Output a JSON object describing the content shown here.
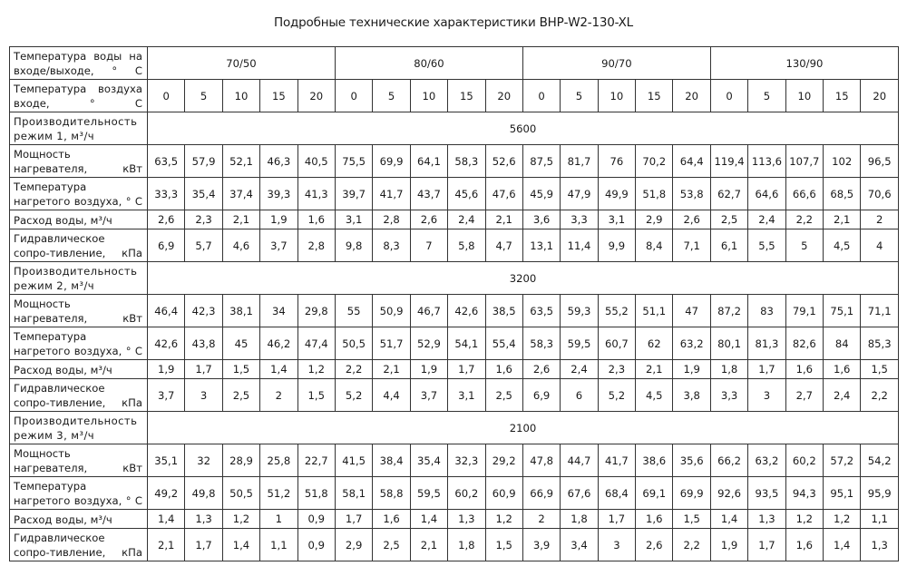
{
  "title": "Подробные технические характеристики ВНР-W2-130-XL",
  "header": {
    "water_temp_label": "Температура воды на входе/выходе, ° С",
    "water_temps": [
      "70/50",
      "80/60",
      "90/70",
      "130/90"
    ],
    "air_temp_label": "Температура воздуха входе, ° С",
    "air_temps": [
      "0",
      "5",
      "10",
      "15",
      "20",
      "0",
      "5",
      "10",
      "15",
      "20",
      "0",
      "5",
      "10",
      "15",
      "20",
      "0",
      "5",
      "10",
      "15",
      "20"
    ]
  },
  "row_labels": {
    "power": "Мощность нагревателя, кВт",
    "heated_air": "Температура нагретого воздуха, ° С",
    "water_flow": "Расход воды, м³/ч",
    "resistance": "Гидравлическое сопро-тивление, кПа"
  },
  "modes": [
    {
      "label": "Производительность режим 1, м³/ч",
      "capacity": "5600",
      "power": [
        "63,5",
        "57,9",
        "52,1",
        "46,3",
        "40,5",
        "75,5",
        "69,9",
        "64,1",
        "58,3",
        "52,6",
        "87,5",
        "81,7",
        "76",
        "70,2",
        "64,4",
        "119,4",
        "113,6",
        "107,7",
        "102",
        "96,5"
      ],
      "heated_air": [
        "33,3",
        "35,4",
        "37,4",
        "39,3",
        "41,3",
        "39,7",
        "41,7",
        "43,7",
        "45,6",
        "47,6",
        "45,9",
        "47,9",
        "49,9",
        "51,8",
        "53,8",
        "62,7",
        "64,6",
        "66,6",
        "68,5",
        "70,6"
      ],
      "water_flow": [
        "2,6",
        "2,3",
        "2,1",
        "1,9",
        "1,6",
        "3,1",
        "2,8",
        "2,6",
        "2,4",
        "2,1",
        "3,6",
        "3,3",
        "3,1",
        "2,9",
        "2,6",
        "2,5",
        "2,4",
        "2,2",
        "2,1",
        "2"
      ],
      "resistance": [
        "6,9",
        "5,7",
        "4,6",
        "3,7",
        "2,8",
        "9,8",
        "8,3",
        "7",
        "5,8",
        "4,7",
        "13,1",
        "11,4",
        "9,9",
        "8,4",
        "7,1",
        "6,1",
        "5,5",
        "5",
        "4,5",
        "4"
      ]
    },
    {
      "label": "Производительность режим 2, м³/ч",
      "capacity": "3200",
      "power": [
        "46,4",
        "42,3",
        "38,1",
        "34",
        "29,8",
        "55",
        "50,9",
        "46,7",
        "42,6",
        "38,5",
        "63,5",
        "59,3",
        "55,2",
        "51,1",
        "47",
        "87,2",
        "83",
        "79,1",
        "75,1",
        "71,1"
      ],
      "heated_air": [
        "42,6",
        "43,8",
        "45",
        "46,2",
        "47,4",
        "50,5",
        "51,7",
        "52,9",
        "54,1",
        "55,4",
        "58,3",
        "59,5",
        "60,7",
        "62",
        "63,2",
        "80,1",
        "81,3",
        "82,6",
        "84",
        "85,3"
      ],
      "water_flow": [
        "1,9",
        "1,7",
        "1,5",
        "1,4",
        "1,2",
        "2,2",
        "2,1",
        "1,9",
        "1,7",
        "1,6",
        "2,6",
        "2,4",
        "2,3",
        "2,1",
        "1,9",
        "1,8",
        "1,7",
        "1,6",
        "1,6",
        "1,5"
      ],
      "resistance": [
        "3,7",
        "3",
        "2,5",
        "2",
        "1,5",
        "5,2",
        "4,4",
        "3,7",
        "3,1",
        "2,5",
        "6,9",
        "6",
        "5,2",
        "4,5",
        "3,8",
        "3,3",
        "3",
        "2,7",
        "2,4",
        "2,2"
      ]
    },
    {
      "label": "Производительность режим 3, м³/ч",
      "capacity": "2100",
      "power": [
        "35,1",
        "32",
        "28,9",
        "25,8",
        "22,7",
        "41,5",
        "38,4",
        "35,4",
        "32,3",
        "29,2",
        "47,8",
        "44,7",
        "41,7",
        "38,6",
        "35,6",
        "66,2",
        "63,2",
        "60,2",
        "57,2",
        "54,2"
      ],
      "heated_air": [
        "49,2",
        "49,8",
        "50,5",
        "51,2",
        "51,8",
        "58,1",
        "58,8",
        "59,5",
        "60,2",
        "60,9",
        "66,9",
        "67,6",
        "68,4",
        "69,1",
        "69,9",
        "92,6",
        "93,5",
        "94,3",
        "95,1",
        "95,9"
      ],
      "water_flow": [
        "1,4",
        "1,3",
        "1,2",
        "1",
        "0,9",
        "1,7",
        "1,6",
        "1,4",
        "1,3",
        "1,2",
        "2",
        "1,8",
        "1,7",
        "1,6",
        "1,5",
        "1,4",
        "1,3",
        "1,2",
        "1,2",
        "1,1"
      ],
      "resistance": [
        "2,1",
        "1,7",
        "1,4",
        "1,1",
        "0,9",
        "2,9",
        "2,5",
        "2,1",
        "1,8",
        "1,5",
        "3,9",
        "3,4",
        "3",
        "2,6",
        "2,2",
        "1,9",
        "1,7",
        "1,6",
        "1,4",
        "1,3"
      ]
    }
  ]
}
